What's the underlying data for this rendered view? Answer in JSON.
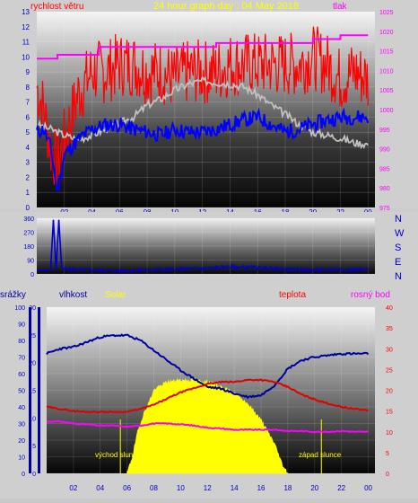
{
  "chart_data": [
    {
      "type": "line",
      "title": "24 hour graph day : 04 May 2018",
      "left_axis_label": "rychlost větru",
      "right_axis_label": "tlak",
      "left_ylim": [
        0,
        13
      ],
      "right_ylim": [
        975,
        1025
      ],
      "left_ticks": [
        "0",
        "1",
        "2",
        "3",
        "4",
        "5",
        "6",
        "7",
        "8",
        "9",
        "10",
        "11",
        "12",
        "13"
      ],
      "right_ticks": [
        "975",
        "980",
        "985",
        "990",
        "995",
        "1000",
        "1005",
        "1010",
        "1015",
        "1020",
        "1025"
      ],
      "x_ticks": [
        "02",
        "04",
        "06",
        "08",
        "10",
        "12",
        "14",
        "16",
        "18",
        "20",
        "22",
        "00"
      ],
      "grid": true,
      "colors": {
        "gust": "#ff0000",
        "speed": "#0000ff",
        "pressure": "#ff00ff",
        "baseline": "#c0c0c0"
      },
      "series": [
        {
          "key": "gust",
          "x": [
            0,
            0.5,
            1,
            1.5,
            2,
            2.5,
            3,
            4,
            5,
            6,
            7,
            8,
            9,
            10,
            11,
            12,
            13,
            14,
            15,
            16,
            17,
            18,
            19,
            20,
            21,
            22,
            23,
            24
          ],
          "values": [
            8.0,
            6.5,
            4.0,
            3.0,
            4.5,
            6.0,
            7.5,
            9.0,
            9.0,
            9.5,
            9.5,
            9.0,
            9.0,
            8.5,
            9.0,
            9.0,
            9.0,
            9.5,
            9.5,
            9.5,
            9.5,
            9.5,
            9.5,
            10.0,
            9.5,
            8.5,
            9.0,
            8.5
          ]
        },
        {
          "key": "speed",
          "x": [
            0,
            0.5,
            1,
            1.5,
            2,
            2.5,
            3,
            4,
            5,
            6,
            7,
            8,
            9,
            10,
            11,
            12,
            13,
            14,
            15,
            16,
            17,
            18,
            19,
            20,
            21,
            22,
            23,
            24
          ],
          "values": [
            5.0,
            5.2,
            4.0,
            1.0,
            3.5,
            4.0,
            4.5,
            5.2,
            5.5,
            5.5,
            5.2,
            5.0,
            4.8,
            5.2,
            5.0,
            5.0,
            5.2,
            5.5,
            5.8,
            6.0,
            5.5,
            5.0,
            5.2,
            5.5,
            5.8,
            6.0,
            6.0,
            6.0
          ]
        },
        {
          "key": "pressure",
          "x": [
            0,
            1.5,
            1.5,
            4.5,
            4.5,
            13,
            13,
            20,
            20,
            22,
            22,
            24
          ],
          "values": [
            1013.0,
            1013.0,
            1014.0,
            1014.0,
            1016.0,
            1016.0,
            1017.0,
            1017.0,
            1018.0,
            1018.0,
            1019.0,
            1019.0
          ]
        },
        {
          "key": "baseline",
          "x": [
            0,
            1,
            2,
            3,
            4,
            5,
            6,
            7,
            8,
            9,
            10,
            11,
            12,
            13,
            14,
            15,
            16,
            17,
            18,
            19,
            20,
            21,
            22,
            23,
            24
          ],
          "values": [
            5.5,
            5.2,
            4.8,
            4.5,
            4.8,
            5.2,
            5.6,
            6.0,
            6.8,
            7.2,
            7.8,
            8.2,
            8.4,
            8.3,
            8.2,
            8.0,
            7.5,
            6.8,
            6.2,
            5.5,
            5.0,
            4.8,
            4.6,
            4.3,
            4.2
          ]
        }
      ]
    },
    {
      "type": "line",
      "ylim": [
        0,
        360
      ],
      "y_ticks": [
        "0",
        "90",
        "180",
        "270",
        "360"
      ],
      "direction_labels": [
        "N",
        "W",
        "S",
        "E",
        "N"
      ],
      "x_ticks": [
        "02",
        "04",
        "06",
        "08",
        "10",
        "12",
        "14",
        "16",
        "18",
        "20",
        "22",
        "00"
      ],
      "colors": {
        "direction": "#0000cc"
      },
      "series": [
        {
          "key": "direction",
          "x": [
            0,
            1,
            1.2,
            1.4,
            1.6,
            1.8,
            2,
            4,
            6,
            8,
            10,
            12,
            14,
            16,
            18,
            20,
            22,
            24
          ],
          "values": [
            20,
            25,
            350,
            25,
            350,
            35,
            30,
            25,
            20,
            25,
            30,
            35,
            45,
            40,
            30,
            25,
            30,
            25
          ]
        }
      ]
    },
    {
      "type": "area",
      "axis_labels": {
        "rain": "srážky",
        "humidity": "vlhkost",
        "solar": "Solar",
        "temp": "teplota",
        "dew": "rosný bod"
      },
      "rain_ticks": [
        "0",
        "10",
        "20",
        "30",
        "40",
        "50",
        "60",
        "70",
        "80",
        "90",
        "100"
      ],
      "humidity_ticks": [
        "0",
        "5",
        "10",
        "15",
        "20",
        "25",
        "30"
      ],
      "temp_ticks": [
        "0",
        "5",
        "10",
        "15",
        "20",
        "25",
        "30",
        "35",
        "40"
      ],
      "x_ticks": [
        "02",
        "04",
        "06",
        "08",
        "10",
        "12",
        "14",
        "16",
        "18",
        "20",
        "22",
        "00"
      ],
      "annotations": {
        "sunrise": "východ slunce",
        "sunset": "západ slunce"
      },
      "sunrise_hour": 5.5,
      "sunset_hour": 20.5,
      "colors": {
        "humidity": "#0000a0",
        "temp": "#e00000",
        "dew": "#ff00ff",
        "solar": "#ffff00"
      },
      "series": [
        {
          "key": "humidity",
          "ylim": [
            0,
            100
          ],
          "x": [
            0,
            1,
            2,
            3,
            4,
            5,
            6,
            7,
            8,
            9,
            10,
            11,
            12,
            13,
            14,
            15,
            16,
            17,
            18,
            19,
            20,
            21,
            22,
            23,
            24
          ],
          "values": [
            72,
            75,
            76,
            79,
            82,
            83,
            83,
            80,
            74,
            68,
            62,
            57,
            52,
            51,
            48,
            46,
            47,
            53,
            63,
            68,
            70,
            71,
            72,
            72,
            72
          ]
        },
        {
          "key": "temp",
          "ylim": [
            0,
            40
          ],
          "x": [
            0,
            1,
            2,
            3,
            4,
            5,
            6,
            7,
            8,
            9,
            10,
            11,
            12,
            13,
            14,
            15,
            16,
            17,
            18,
            19,
            20,
            21,
            22,
            23,
            24
          ],
          "values": [
            16.0,
            15.5,
            15.0,
            14.8,
            14.8,
            14.8,
            14.8,
            15.5,
            16.5,
            18.0,
            19.5,
            20.5,
            21.5,
            22.0,
            22.0,
            22.5,
            22.5,
            22.0,
            20.8,
            19.0,
            17.8,
            16.8,
            16.0,
            15.5,
            15.2
          ]
        },
        {
          "key": "dew",
          "ylim": [
            0,
            40
          ],
          "x": [
            0,
            1,
            2,
            3,
            4,
            5,
            6,
            7,
            8,
            9,
            10,
            11,
            12,
            13,
            14,
            15,
            16,
            17,
            18,
            19,
            20,
            21,
            22,
            23,
            24
          ],
          "values": [
            12.5,
            12.5,
            12.0,
            11.8,
            11.5,
            11.5,
            11.2,
            11.5,
            12.0,
            12.0,
            11.8,
            11.5,
            11.0,
            10.8,
            10.5,
            10.5,
            10.5,
            10.5,
            10.2,
            10.2,
            10.0,
            10.0,
            10.2,
            10.0,
            10.0
          ]
        },
        {
          "key": "solar",
          "ylim": [
            0,
            100
          ],
          "x": [
            0,
            6.0,
            6.4,
            6.8,
            7.2,
            7.6,
            8,
            9,
            10,
            11,
            12,
            13,
            14,
            15,
            16,
            17,
            17.6,
            18,
            24
          ],
          "values": [
            0,
            0,
            10,
            25,
            35,
            42,
            50,
            55,
            56,
            56,
            55,
            52,
            48,
            42,
            32,
            18,
            5,
            0,
            0
          ]
        }
      ]
    }
  ]
}
